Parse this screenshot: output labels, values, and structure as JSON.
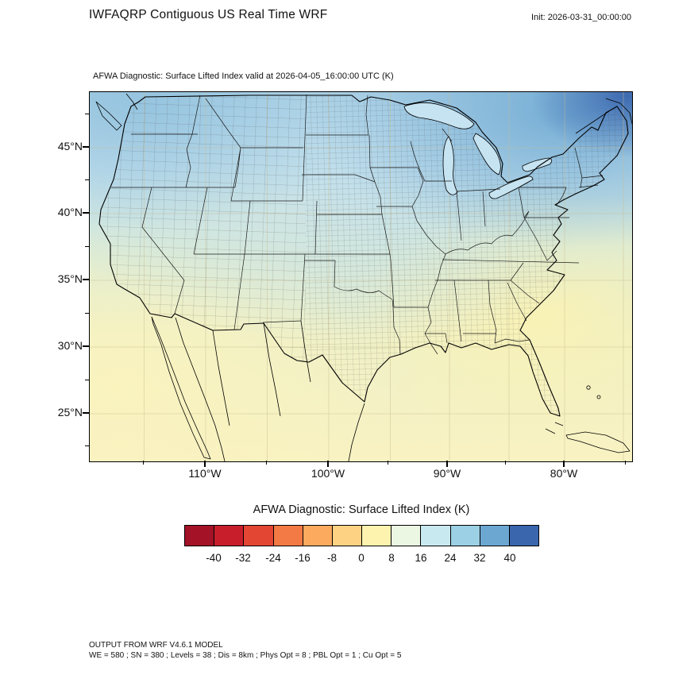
{
  "header": {
    "title": "IWFAQRP Contiguous US Real Time WRF",
    "init_label": "Init: 2026-03-31_00:00:00"
  },
  "plot": {
    "subtitle": "AFWA Diagnostic: Surface Lifted Index valid at 2026-04-05_16:00:00 UTC   (K)",
    "y_tick_labels": [
      "45°N",
      "40°N",
      "35°N",
      "30°N",
      "25°N"
    ],
    "x_tick_labels": [
      "110°W",
      "100°W",
      "90°W",
      "80°W"
    ]
  },
  "colorbar": {
    "title": "AFWA Diagnostic: Surface Lifted Index  (K)",
    "tick_labels": [
      "-40",
      "-32",
      "-24",
      "-16",
      "-8",
      "0",
      "8",
      "16",
      "24",
      "32",
      "40"
    ],
    "colors": [
      "#a31227",
      "#c81e2c",
      "#e34633",
      "#f37a44",
      "#fbaa5e",
      "#fdd283",
      "#fdf3ae",
      "#ecf7e3",
      "#c9e9f0",
      "#9cd0e5",
      "#6ca7d2",
      "#3a66ae"
    ]
  },
  "footer": {
    "line1": "OUTPUT FROM WRF V4.6.1 MODEL",
    "line2": "WE = 580 ; SN = 380 ; Levels = 38 ; Dis = 8km ; Phys Opt = 8 ; PBL Opt = 1 ; Cu Opt = 5"
  },
  "chart_data": {
    "type": "heatmap",
    "title": "AFWA Diagnostic: Surface Lifted Index (K)",
    "region": "Contiguous United States",
    "x_ticks": [
      "110°W",
      "100°W",
      "90°W",
      "80°W"
    ],
    "y_ticks": [
      "45°N",
      "40°N",
      "35°N",
      "30°N",
      "25°N"
    ],
    "levels": [
      -40,
      -32,
      -24,
      -16,
      -8,
      0,
      8,
      16,
      24,
      32,
      40
    ],
    "units": "K",
    "palette": [
      "#a31227",
      "#c81e2c",
      "#e34633",
      "#f37a44",
      "#fbaa5e",
      "#fdd283",
      "#fdf3ae",
      "#ecf7e3",
      "#c9e9f0",
      "#9cd0e5",
      "#6ca7d2",
      "#3a66ae"
    ],
    "field_summary": "Pale yellow (0 to 8 K) over the southern U.S., Gulf of Mexico, Mexico and the southeast Atlantic; light blue (8 to 24 K) across the central and northern U.S. and Great Lakes; darker blue (24 to 40 K) over southeastern Canada at the top-right of the domain."
  }
}
